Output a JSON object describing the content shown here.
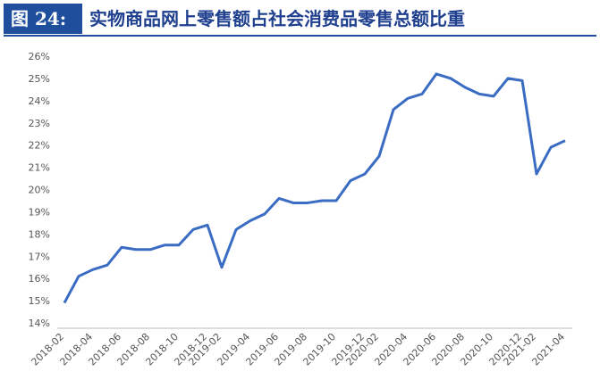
{
  "chart_data": {
    "type": "line",
    "label": "图 24:",
    "title": "实物商品网上零售额占社会消费品零售总额比重",
    "categories": [
      "2018-02",
      null,
      "2018-04",
      null,
      "2018-06",
      null,
      "2018-08",
      null,
      "2018-10",
      null,
      "2018-12",
      "2019-02",
      null,
      "2019-04",
      null,
      "2019-06",
      null,
      "2019-08",
      null,
      "2019-10",
      null,
      "2019-12",
      "2020-02",
      null,
      "2020-04",
      null,
      "2020-06",
      null,
      "2020-08",
      null,
      "2020-10",
      null,
      "2020-12",
      "2021-02",
      null,
      "2021-04"
    ],
    "series": [
      {
        "color": "#3a6cc4",
        "values": [
          14.9,
          16.1,
          16.4,
          16.6,
          17.4,
          17.3,
          17.3,
          17.5,
          17.5,
          18.2,
          18.4,
          16.5,
          18.2,
          18.6,
          18.9,
          19.6,
          19.4,
          19.4,
          19.5,
          19.5,
          20.4,
          20.7,
          21.5,
          23.6,
          24.1,
          24.3,
          25.2,
          25.0,
          24.6,
          24.3,
          24.2,
          25.0,
          24.9,
          20.7,
          21.9,
          22.2
        ]
      }
    ],
    "ylim": [
      14,
      26
    ],
    "yticks": [
      {
        "value": 14,
        "label": "14%"
      },
      {
        "value": 15,
        "label": "15%"
      },
      {
        "value": 16,
        "label": "16%"
      },
      {
        "value": 17,
        "label": "17%"
      },
      {
        "value": 18,
        "label": "18%"
      },
      {
        "value": 19,
        "label": "19%"
      },
      {
        "value": 20,
        "label": "20%"
      },
      {
        "value": 21,
        "label": "21%"
      },
      {
        "value": 22,
        "label": "22%"
      },
      {
        "value": 23,
        "label": "23%"
      },
      {
        "value": 24,
        "label": "24%"
      },
      {
        "value": 25,
        "label": "25%"
      },
      {
        "value": 26,
        "label": "26%"
      }
    ]
  }
}
